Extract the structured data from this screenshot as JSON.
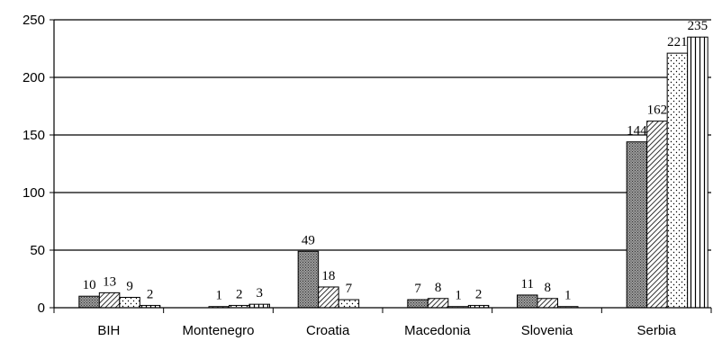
{
  "chart_data": {
    "type": "bar",
    "title": "",
    "xlabel": "",
    "ylabel": "",
    "ylim": [
      0,
      250
    ],
    "yticks": [
      "0",
      "50",
      "100",
      "150",
      "200",
      "250"
    ],
    "grid": true,
    "legend": "none",
    "categories": [
      "BIH",
      "Montenegro",
      "Croatia",
      "Macedonia",
      "Slovenia",
      "Serbia"
    ],
    "series": [
      {
        "values": [
          10,
          0,
          49,
          7,
          11,
          144
        ],
        "labels": [
          "10",
          "",
          "49",
          "7",
          "11",
          "144"
        ],
        "pattern": "dark-dots",
        "color": "#808080"
      },
      {
        "values": [
          13,
          1,
          18,
          8,
          8,
          162
        ],
        "labels": [
          "13",
          "1",
          "18",
          "8",
          "8",
          "162"
        ],
        "pattern": "diagonal-hatch",
        "color": "#ffffff"
      },
      {
        "values": [
          9,
          2,
          7,
          1,
          1,
          221
        ],
        "labels": [
          "9",
          "2",
          "7",
          "1",
          "1",
          "221"
        ],
        "pattern": "light-dots",
        "color": "#ffffff"
      },
      {
        "values": [
          2,
          3,
          0,
          2,
          0,
          235
        ],
        "labels": [
          "2",
          "3",
          "",
          "2",
          "",
          "235"
        ],
        "pattern": "vertical-lines",
        "color": "#ffffff"
      }
    ]
  }
}
